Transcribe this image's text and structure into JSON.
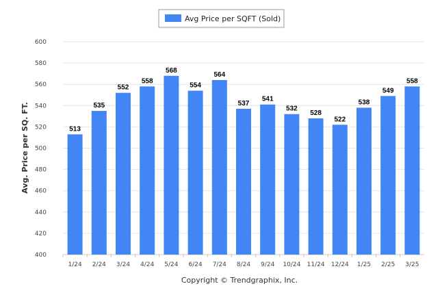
{
  "colors": {
    "bar": "#4285f4",
    "grid": "#e6e6e6",
    "axis": "#c8c8c8",
    "background": "#ffffff"
  },
  "legend": {
    "label": "Avg Price per SQFT (Sold)",
    "placement": "top-center"
  },
  "footer": {
    "text": "Copyright © Trendgraphix, Inc."
  },
  "chart_data": {
    "type": "bar",
    "ylabel": "Avg. Price per SQ. FT.",
    "xlabel": "",
    "ylim": [
      400,
      600
    ],
    "yticks": [
      400,
      420,
      440,
      460,
      480,
      500,
      520,
      540,
      560,
      580,
      600
    ],
    "grid": true,
    "categories": [
      "1/24",
      "2/24",
      "3/24",
      "4/24",
      "5/24",
      "6/24",
      "7/24",
      "8/24",
      "9/24",
      "10/24",
      "11/24",
      "12/24",
      "1/25",
      "2/25",
      "3/25"
    ],
    "series": [
      {
        "name": "Avg Price per SQFT (Sold)",
        "values": [
          513,
          535,
          552,
          558,
          568,
          554,
          564,
          537,
          541,
          532,
          528,
          522,
          538,
          549,
          558
        ]
      }
    ]
  }
}
